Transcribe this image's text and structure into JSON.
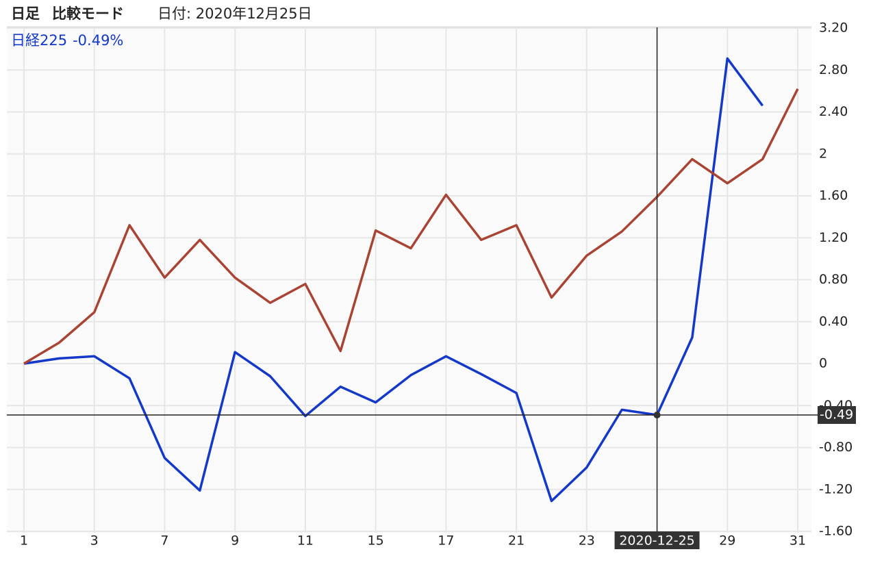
{
  "chart_data": {
    "type": "line",
    "header": [
      "日足",
      "比較モード",
      "日付: 2020年12月25日"
    ],
    "categories": [
      "1",
      null,
      "3",
      null,
      "7",
      null,
      "9",
      null,
      "11",
      null,
      "15",
      null,
      "17",
      null,
      "21",
      null,
      "23",
      null,
      "2020-12-25",
      null,
      "29",
      null,
      "31"
    ],
    "series": [
      {
        "name": "日経225",
        "color": "#1438c8",
        "values": [
          0,
          0.05,
          0.07,
          -0.14,
          -0.9,
          -1.21,
          0.11,
          -0.12,
          -0.5,
          -0.22,
          -0.37,
          -0.11,
          0.07,
          -0.1,
          -0.28,
          -1.31,
          -0.99,
          -0.44,
          -0.49,
          0.25,
          2.91,
          2.46,
          null
        ]
      },
      {
        "color": "#a94434",
        "values": [
          0,
          0.2,
          0.49,
          1.32,
          0.82,
          1.18,
          0.82,
          0.58,
          0.76,
          0.12,
          1.27,
          1.1,
          1.61,
          1.18,
          1.32,
          0.63,
          1.03,
          1.26,
          1.59,
          1.95,
          1.72,
          1.95,
          2.62
        ]
      }
    ],
    "crosshair": {
      "y": -0.49,
      "legend_label": "-0.49%"
    },
    "ylim": [
      -1.6,
      3.2
    ],
    "yticks": [
      {
        "value": 3.2,
        "label": "3.20"
      },
      {
        "value": 2.8,
        "label": "2.80"
      },
      {
        "value": 2.4,
        "label": "2.40"
      },
      2,
      {
        "value": 1.6,
        "label": "1.60"
      },
      {
        "value": 1.2,
        "label": "1.20"
      },
      {
        "value": 0.8,
        "label": "0.80"
      },
      {
        "value": 0.4,
        "label": "0.40"
      },
      0,
      {
        "value": -0.4,
        "label": "-0.40"
      },
      {
        "value": -0.8,
        "label": "-0.80"
      },
      {
        "value": -1.2,
        "label": "-1.20"
      },
      {
        "value": -1.6,
        "label": "-1.60"
      }
    ],
    "grid": true
  }
}
